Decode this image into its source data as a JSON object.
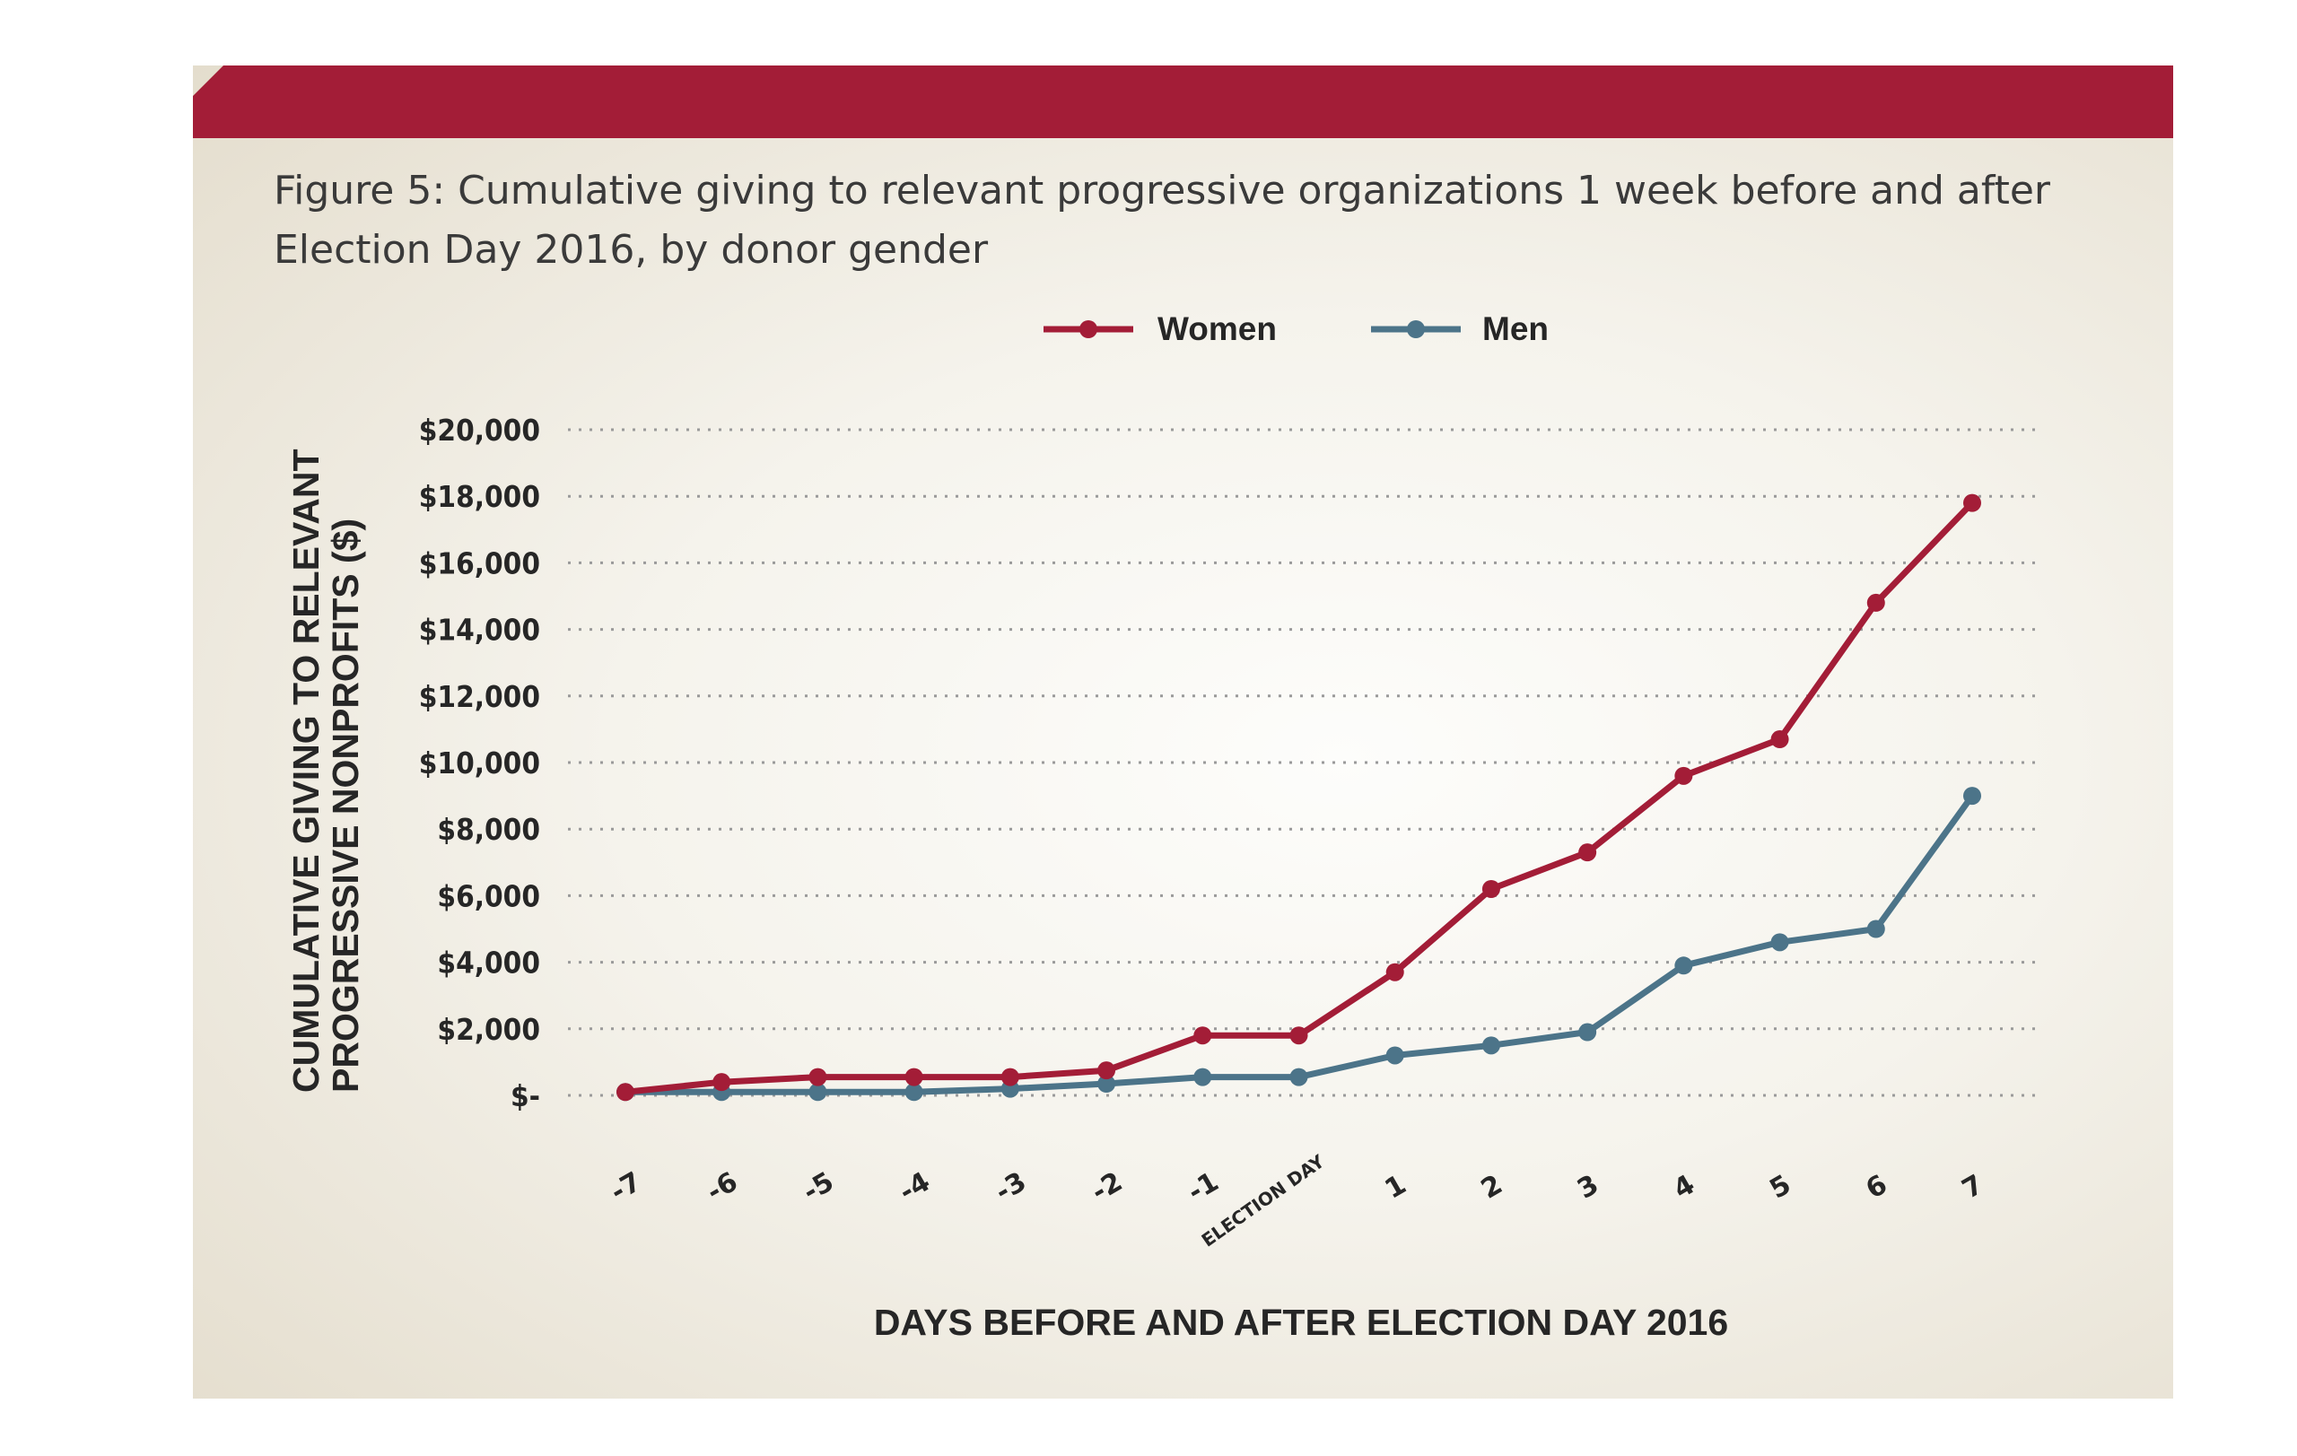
{
  "figure": {
    "title": "Figure 5: Cumulative giving to relevant progressive organizations 1 week before and after Election Day 2016, by donor gender"
  },
  "colors": {
    "banner": "#a31d37",
    "women": "#a31d37",
    "men": "#4c7489"
  },
  "chart_data": {
    "type": "line",
    "title": "Figure 5: Cumulative giving to relevant progressive organizations 1 week before and after Election Day 2016, by donor gender",
    "xlabel": "DAYS BEFORE AND AFTER ELECTION DAY 2016",
    "ylabel": [
      "CUMULATIVE GIVING  TO RELEVANT",
      "PROGRESSIVE NONPROFITS ($)"
    ],
    "categories": [
      "-7",
      "-6",
      "-5",
      "-4",
      "-3",
      "-2",
      "-1",
      "ELECTION DAY",
      "1",
      "2",
      "3",
      "4",
      "5",
      "6",
      "7"
    ],
    "ylim": [
      0,
      20000
    ],
    "yticks": [
      0,
      2000,
      4000,
      6000,
      8000,
      10000,
      12000,
      14000,
      16000,
      18000,
      20000
    ],
    "ytick_labels": [
      "$-",
      "$2,000",
      "$4,000",
      "$6,000",
      "$8,000",
      "$10,000",
      "$12,000",
      "$14,000",
      "$16,000",
      "$18,000",
      "$20,000"
    ],
    "grid": true,
    "legend_position": "top-center",
    "series": [
      {
        "name": "Women",
        "color": "#a31d37",
        "values": [
          100,
          400,
          550,
          550,
          550,
          750,
          1800,
          1800,
          3700,
          6200,
          7300,
          9600,
          10700,
          14800,
          17800
        ]
      },
      {
        "name": "Men",
        "color": "#4c7489",
        "values": [
          100,
          100,
          100,
          100,
          200,
          350,
          550,
          550,
          1200,
          1500,
          1900,
          3900,
          4600,
          5000,
          9000
        ]
      }
    ]
  }
}
